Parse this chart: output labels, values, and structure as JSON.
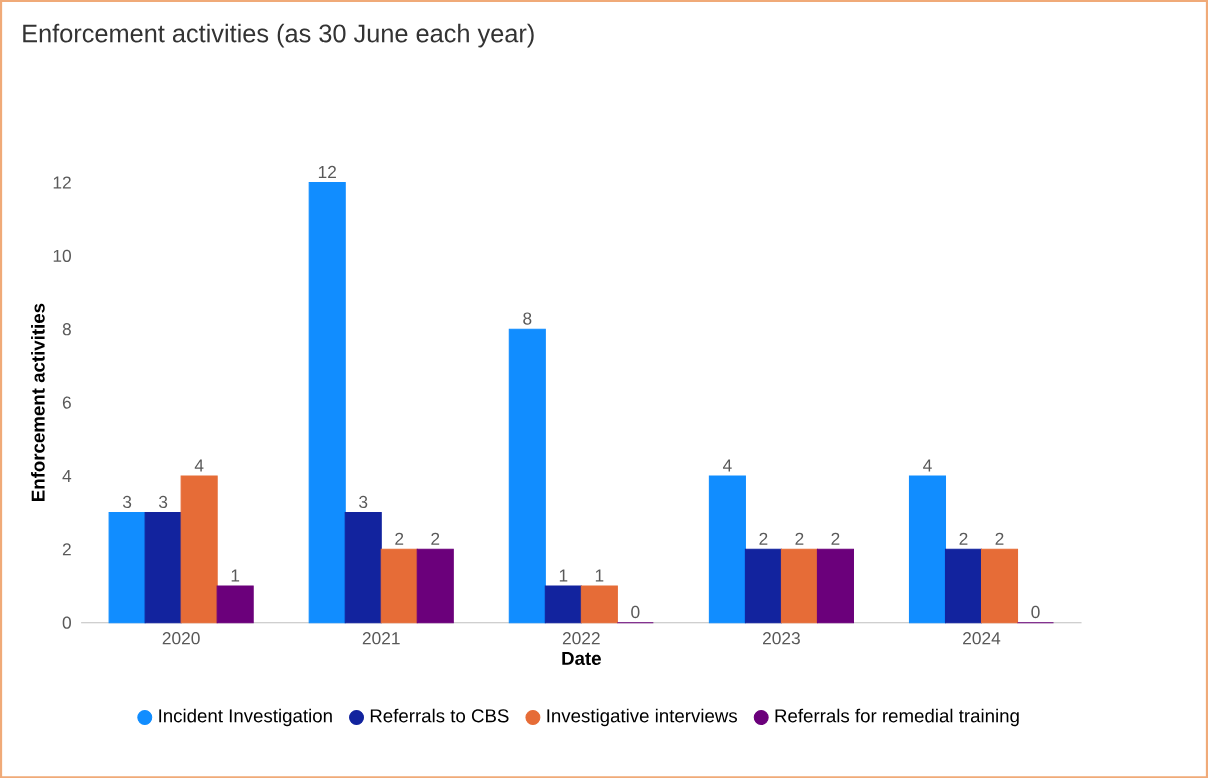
{
  "chart_data": {
    "type": "bar",
    "title": "Enforcement activities (as 30 June each year)",
    "xlabel": "Date",
    "ylabel": "Enforcement activities",
    "categories": [
      "2020",
      "2021",
      "2022",
      "2023",
      "2024"
    ],
    "series": [
      {
        "name": "Incident Investigation",
        "color": "#118dff",
        "values": [
          3,
          12,
          8,
          4,
          4
        ]
      },
      {
        "name": "Referrals to CBS",
        "color": "#12239e",
        "values": [
          3,
          3,
          1,
          2,
          2
        ]
      },
      {
        "name": "Investigative interviews",
        "color": "#e66c37",
        "values": [
          4,
          2,
          1,
          2,
          2
        ]
      },
      {
        "name": "Referrals for remedial training",
        "color": "#6b007b",
        "values": [
          1,
          2,
          0,
          2,
          0
        ]
      }
    ],
    "ylim": [
      0,
      12
    ],
    "yticks": [
      0,
      2,
      4,
      6,
      8,
      10,
      12
    ],
    "grid": false,
    "legend": "bottom",
    "data_labels": true
  }
}
